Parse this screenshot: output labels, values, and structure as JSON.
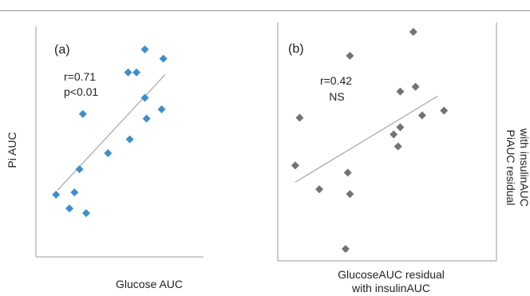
{
  "chart_data": [
    {
      "type": "scatter",
      "panel_label": "(a)",
      "xlabel": "Glucose AUC",
      "ylabel": "Pi AUC",
      "annotation": [
        "r=0.71",
        "p<0.01"
      ],
      "marker_color": "#3d8ec9",
      "trend_color": "#a6a6a6",
      "points": [
        {
          "x": 0.12,
          "y": 0.27
        },
        {
          "x": 0.2,
          "y": 0.21
        },
        {
          "x": 0.3,
          "y": 0.19
        },
        {
          "x": 0.23,
          "y": 0.28
        },
        {
          "x": 0.26,
          "y": 0.38
        },
        {
          "x": 0.28,
          "y": 0.62
        },
        {
          "x": 0.43,
          "y": 0.45
        },
        {
          "x": 0.56,
          "y": 0.51
        },
        {
          "x": 0.55,
          "y": 0.8
        },
        {
          "x": 0.6,
          "y": 0.8
        },
        {
          "x": 0.65,
          "y": 0.69
        },
        {
          "x": 0.65,
          "y": 0.9
        },
        {
          "x": 0.66,
          "y": 0.6
        },
        {
          "x": 0.76,
          "y": 0.86
        },
        {
          "x": 0.75,
          "y": 0.64
        }
      ],
      "trend": [
        {
          "x": 0.13,
          "y": 0.29
        },
        {
          "x": 0.77,
          "y": 0.79
        }
      ]
    },
    {
      "type": "scatter",
      "panel_label": "(b)",
      "xlabel": "GlucoseAUC residual with insulinAUC",
      "xlabel_lines": [
        "GlucoseAUC residual",
        "with insulinAUC"
      ],
      "ylabel": "PiAUC residual with insulinAUC",
      "ylabel_lines": [
        "PiAUC residual",
        "with insulinAUC"
      ],
      "annotation": [
        "r=0.42",
        "NS"
      ],
      "marker_color": "#737373",
      "trend_color": "#a6a6a6",
      "points": [
        {
          "x": 0.08,
          "y": 0.4
        },
        {
          "x": 0.1,
          "y": 0.6
        },
        {
          "x": 0.19,
          "y": 0.3
        },
        {
          "x": 0.33,
          "y": 0.86
        },
        {
          "x": 0.32,
          "y": 0.37
        },
        {
          "x": 0.33,
          "y": 0.28
        },
        {
          "x": 0.31,
          "y": 0.05
        },
        {
          "x": 0.53,
          "y": 0.53
        },
        {
          "x": 0.56,
          "y": 0.56
        },
        {
          "x": 0.55,
          "y": 0.48
        },
        {
          "x": 0.56,
          "y": 0.71
        },
        {
          "x": 0.63,
          "y": 0.73
        },
        {
          "x": 0.66,
          "y": 0.61
        },
        {
          "x": 0.76,
          "y": 0.63
        },
        {
          "x": 0.62,
          "y": 0.96
        }
      ],
      "trend": [
        {
          "x": 0.08,
          "y": 0.33
        },
        {
          "x": 0.73,
          "y": 0.69
        }
      ]
    }
  ]
}
